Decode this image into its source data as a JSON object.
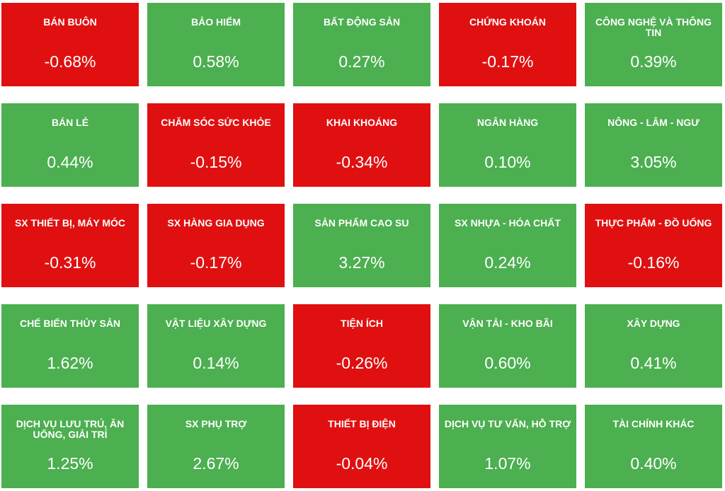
{
  "colors": {
    "up": "#4caf50",
    "down": "#e01010",
    "text": "#ffffff"
  },
  "sectors": [
    {
      "name": "BÁN BUÔN",
      "change": "-0.68%",
      "direction": "down"
    },
    {
      "name": "BẢO HIỂM",
      "change": "0.58%",
      "direction": "up"
    },
    {
      "name": "BẤT ĐỘNG SẢN",
      "change": "0.27%",
      "direction": "up"
    },
    {
      "name": "CHỨNG KHOÁN",
      "change": "-0.17%",
      "direction": "down"
    },
    {
      "name": "CÔNG NGHỆ VÀ THÔNG TIN",
      "change": "0.39%",
      "direction": "up"
    },
    {
      "name": "BÁN LẺ",
      "change": "0.44%",
      "direction": "up"
    },
    {
      "name": "CHĂM SÓC SỨC KHỎE",
      "change": "-0.15%",
      "direction": "down"
    },
    {
      "name": "KHAI KHOÁNG",
      "change": "-0.34%",
      "direction": "down"
    },
    {
      "name": "NGÂN HÀNG",
      "change": "0.10%",
      "direction": "up"
    },
    {
      "name": "NÔNG - LÂM - NGƯ",
      "change": "3.05%",
      "direction": "up"
    },
    {
      "name": "SX THIẾT BỊ, MÁY MÓC",
      "change": "-0.31%",
      "direction": "down"
    },
    {
      "name": "SX HÀNG GIA DỤNG",
      "change": "-0.17%",
      "direction": "down"
    },
    {
      "name": "SẢN PHẨM CAO SU",
      "change": "3.27%",
      "direction": "up"
    },
    {
      "name": "SX NHỰA - HÓA CHẤT",
      "change": "0.24%",
      "direction": "up"
    },
    {
      "name": "THỰC PHẨM - ĐỒ UỐNG",
      "change": "-0.16%",
      "direction": "down"
    },
    {
      "name": "CHẾ BIẾN THỦY SẢN",
      "change": "1.62%",
      "direction": "up"
    },
    {
      "name": "VẬT LIỆU XÂY DỰNG",
      "change": "0.14%",
      "direction": "up"
    },
    {
      "name": "TIỆN ÍCH",
      "change": "-0.26%",
      "direction": "down"
    },
    {
      "name": "VẬN TẢI - KHO BÃI",
      "change": "0.60%",
      "direction": "up"
    },
    {
      "name": "XÂY DỰNG",
      "change": "0.41%",
      "direction": "up"
    },
    {
      "name": "DỊCH VỤ LƯU TRÚ, ĂN UỐNG, GIẢI TRÍ",
      "change": "1.25%",
      "direction": "up"
    },
    {
      "name": "SX PHỤ TRỢ",
      "change": "2.67%",
      "direction": "up"
    },
    {
      "name": "THIẾT BỊ ĐIỆN",
      "change": "-0.04%",
      "direction": "down"
    },
    {
      "name": "DỊCH VỤ TƯ VẤN, HỖ TRỢ",
      "change": "1.07%",
      "direction": "up"
    },
    {
      "name": "TÀI CHÍNH KHÁC",
      "change": "0.40%",
      "direction": "up"
    }
  ]
}
